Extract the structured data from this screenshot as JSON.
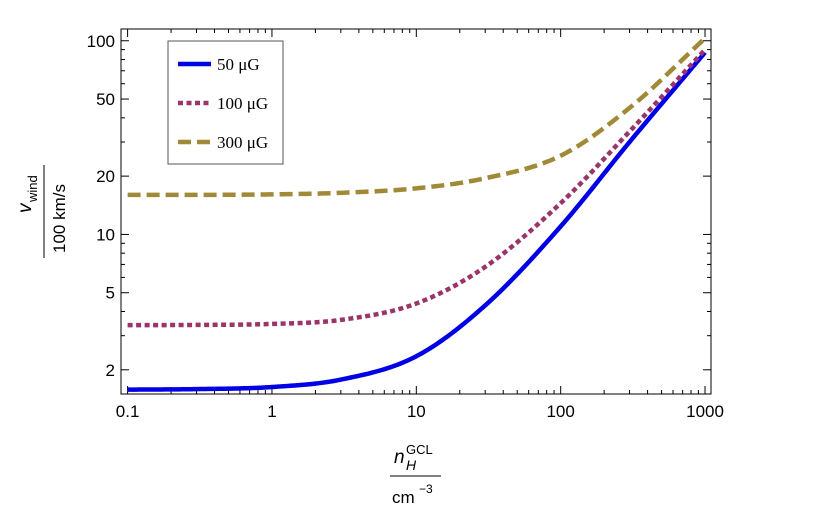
{
  "chart_data": {
    "type": "line",
    "title": "",
    "xscale": "log",
    "yscale": "log",
    "xlim": [
      0.09,
      1100
    ],
    "ylim": [
      1.5,
      115
    ],
    "x_ticks": [
      0.1,
      1,
      10,
      100,
      1000
    ],
    "x_tick_labels": [
      "0.1",
      "1",
      "10",
      "100",
      "1000"
    ],
    "y_ticks": [
      2,
      5,
      10,
      20,
      50,
      100
    ],
    "y_tick_labels": [
      "2",
      "5",
      "10",
      "20",
      "50",
      "100"
    ],
    "xlabel": {
      "numerator_base": "n",
      "numerator_sub": "H",
      "numerator_sup": "GCL",
      "denominator_base": "cm",
      "denominator_sup": "−3"
    },
    "ylabel": {
      "numerator_base": "v",
      "numerator_sub": "wind",
      "denominator": "100 km/s"
    },
    "legend_position": "top-left",
    "series": [
      {
        "name": "50 μG",
        "style": "solid",
        "color": "#0000e6",
        "x": [
          0.1,
          0.3,
          1,
          3,
          10,
          30,
          100,
          300,
          1000
        ],
        "y": [
          1.58,
          1.59,
          1.63,
          1.78,
          2.35,
          4.3,
          11.0,
          30.0,
          87.0
        ]
      },
      {
        "name": "100 μG",
        "style": "dotted",
        "color": "#9b3468",
        "x": [
          0.1,
          0.3,
          1,
          3,
          10,
          30,
          100,
          300,
          1000
        ],
        "y": [
          3.4,
          3.41,
          3.45,
          3.62,
          4.4,
          6.8,
          14.5,
          34.0,
          90.0
        ]
      },
      {
        "name": "300 μG",
        "style": "dashed",
        "color": "#a08a38",
        "x": [
          0.1,
          0.3,
          1,
          3,
          10,
          30,
          100,
          300,
          1000
        ],
        "y": [
          16.0,
          16.0,
          16.1,
          16.4,
          17.3,
          19.5,
          25.5,
          45.0,
          103.0
        ]
      }
    ]
  }
}
